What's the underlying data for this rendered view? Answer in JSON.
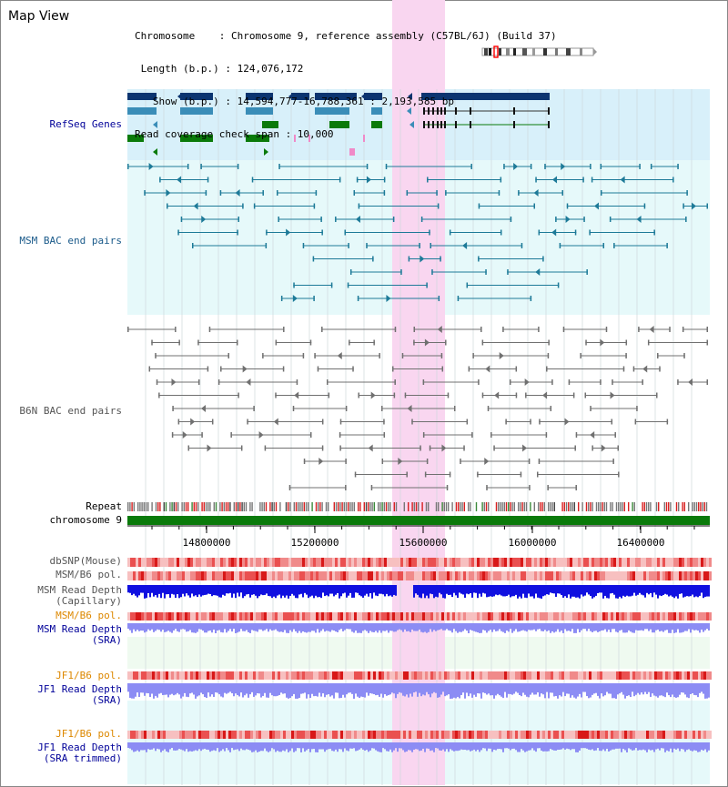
{
  "header": {
    "title": "Map View",
    "info_lines": [
      "Chromosome    : Chromosome 9, reference assembly (C57BL/6J) (Build 37)",
      " Length (b.p.) : 124,076,172",
      "   Show (b.p.) : 14,594,777-16,788,361 : 2,193,585 bp",
      "Read coverage check span : 10,000"
    ]
  },
  "tracks": {
    "refseq": "RefSeq Genes",
    "msm_bac": "MSM BAC end pairs",
    "b6n_bac": "B6N BAC end pairs",
    "repeat": "Repeat",
    "chromosome": "chromosome 9",
    "dbsnp": "dbSNP(Mouse)",
    "msm_b6_pol_1": "MSM/B6 pol.",
    "msm_read_depth_cap": "MSM Read Depth\n(Capillary)",
    "msm_b6_pol_2": "MSM/B6 pol.",
    "msm_read_depth_sra": "MSM Read Depth\n(SRA)",
    "jf1_b6_pol_1": "JF1/B6 pol.",
    "jf1_read_depth_sra": "JF1 Read Depth\n(SRA)",
    "jf1_b6_pol_2": "JF1/B6 pol.",
    "jf1_read_depth_trim": "JF1 Read Depth\n(SRA trimmed)"
  },
  "axis": {
    "ticks": [
      "14800000",
      "15200000",
      "15600000",
      "16000000",
      "16400000"
    ]
  },
  "colors": {
    "highlight": "#f9d6f0",
    "refseq_bg": "#d8f0fa",
    "gene_navy": "#0b3470",
    "gene_steel": "#3a8db8",
    "gene_green": "#0a7a0a",
    "msm_pair": "#1d7a98",
    "b6n_pair": "#707070",
    "chromosome": "#0a7a0a",
    "depth_dark": "#1010e0",
    "depth_light": "#8c8cf4",
    "label_blue": "#000099",
    "label_orange": "#dd8800",
    "label_msm": "#1a5a8a",
    "label_gray": "#555555"
  }
}
